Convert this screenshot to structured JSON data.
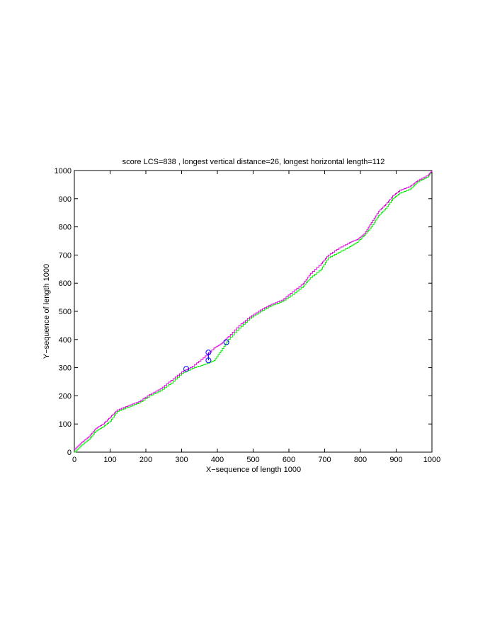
{
  "chart_data": {
    "type": "line",
    "title": "score LCS=838 , longest vertical distance=26, longest horizontal length=112",
    "xlabel": "X−sequence of length 1000",
    "ylabel": "Y−sequence of length 1000",
    "xlim": [
      0,
      1000
    ],
    "ylim": [
      0,
      1000
    ],
    "grid": false,
    "legend": "none",
    "xticks": [
      0,
      100,
      200,
      300,
      400,
      500,
      600,
      700,
      800,
      900,
      1000
    ],
    "yticks": [
      0,
      100,
      200,
      300,
      400,
      500,
      600,
      700,
      800,
      900,
      1000
    ],
    "x_tick_labels": [
      "0",
      "100",
      "200",
      "300",
      "400",
      "500",
      "600",
      "700",
      "800",
      "900",
      "1000"
    ],
    "y_tick_labels": [
      "0",
      "100",
      "200",
      "300",
      "400",
      "500",
      "600",
      "700",
      "800",
      "900",
      "1000"
    ],
    "series": [
      {
        "color": "#00ee00",
        "points": [
          [
            0,
            0
          ],
          [
            20,
            25
          ],
          [
            40,
            45
          ],
          [
            60,
            75
          ],
          [
            80,
            90
          ],
          [
            100,
            110
          ],
          [
            120,
            145
          ],
          [
            150,
            160
          ],
          [
            180,
            175
          ],
          [
            210,
            200
          ],
          [
            240,
            218
          ],
          [
            270,
            245
          ],
          [
            300,
            280
          ],
          [
            330,
            298
          ],
          [
            360,
            310
          ],
          [
            390,
            325
          ],
          [
            410,
            360
          ],
          [
            430,
            400
          ],
          [
            460,
            440
          ],
          [
            490,
            475
          ],
          [
            520,
            500
          ],
          [
            550,
            520
          ],
          [
            580,
            535
          ],
          [
            610,
            560
          ],
          [
            640,
            590
          ],
          [
            660,
            620
          ],
          [
            690,
            650
          ],
          [
            710,
            690
          ],
          [
            740,
            710
          ],
          [
            770,
            730
          ],
          [
            790,
            745
          ],
          [
            810,
            770
          ],
          [
            830,
            800
          ],
          [
            850,
            840
          ],
          [
            870,
            865
          ],
          [
            890,
            900
          ],
          [
            910,
            920
          ],
          [
            940,
            935
          ],
          [
            960,
            960
          ],
          [
            990,
            980
          ],
          [
            1000,
            1000
          ]
        ]
      },
      {
        "color": "#dd00dd",
        "points": [
          [
            0,
            10
          ],
          [
            20,
            35
          ],
          [
            40,
            55
          ],
          [
            60,
            85
          ],
          [
            80,
            100
          ],
          [
            100,
            125
          ],
          [
            120,
            150
          ],
          [
            150,
            165
          ],
          [
            180,
            180
          ],
          [
            210,
            205
          ],
          [
            240,
            225
          ],
          [
            270,
            255
          ],
          [
            300,
            285
          ],
          [
            330,
            305
          ],
          [
            360,
            335
          ],
          [
            390,
            370
          ],
          [
            410,
            385
          ],
          [
            430,
            410
          ],
          [
            460,
            450
          ],
          [
            490,
            480
          ],
          [
            520,
            505
          ],
          [
            550,
            525
          ],
          [
            580,
            540
          ],
          [
            610,
            570
          ],
          [
            640,
            600
          ],
          [
            660,
            635
          ],
          [
            690,
            670
          ],
          [
            710,
            700
          ],
          [
            740,
            725
          ],
          [
            770,
            745
          ],
          [
            790,
            755
          ],
          [
            810,
            775
          ],
          [
            830,
            815
          ],
          [
            850,
            855
          ],
          [
            870,
            880
          ],
          [
            890,
            910
          ],
          [
            910,
            930
          ],
          [
            940,
            945
          ],
          [
            960,
            965
          ],
          [
            990,
            985
          ],
          [
            1000,
            1000
          ]
        ]
      }
    ],
    "markers": [
      [
        313,
        296
      ],
      [
        375,
        354
      ],
      [
        375,
        326
      ],
      [
        425,
        390
      ]
    ],
    "marker_color": "#0000ff"
  }
}
